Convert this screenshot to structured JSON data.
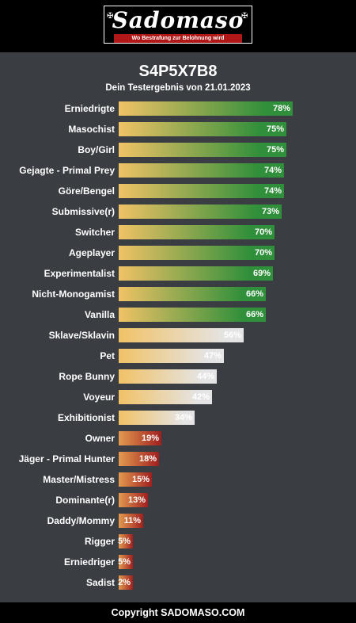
{
  "brand": {
    "name": "Sadomaso",
    "tagline": "Wo Bestrafung zur Belohnung wird"
  },
  "result": {
    "title": "S4P5X7B8",
    "subtitle": "Dein Testergebnis von 21.01.2023"
  },
  "colors": {
    "high_start": "#f1c266",
    "high_end": "#2f8f3a",
    "mid_start": "#f1c266",
    "mid_end": "#e4e4e4",
    "low_start": "#e39a4f",
    "low_end": "#a01f1f"
  },
  "results": [
    {
      "label": "Erniedrigte",
      "value": 78,
      "value_text": "78%",
      "tier": "high"
    },
    {
      "label": "Masochist",
      "value": 75,
      "value_text": "75%",
      "tier": "high"
    },
    {
      "label": "Boy/Girl",
      "value": 75,
      "value_text": "75%",
      "tier": "high"
    },
    {
      "label": "Gejagte - Primal Prey",
      "value": 74,
      "value_text": "74%",
      "tier": "high"
    },
    {
      "label": "Göre/Bengel",
      "value": 74,
      "value_text": "74%",
      "tier": "high"
    },
    {
      "label": "Submissive(r)",
      "value": 73,
      "value_text": "73%",
      "tier": "high"
    },
    {
      "label": "Switcher",
      "value": 70,
      "value_text": "70%",
      "tier": "high"
    },
    {
      "label": "Ageplayer",
      "value": 70,
      "value_text": "70%",
      "tier": "high"
    },
    {
      "label": "Experimentalist",
      "value": 69,
      "value_text": "69%",
      "tier": "high"
    },
    {
      "label": "Nicht-Monogamist",
      "value": 66,
      "value_text": "66%",
      "tier": "high"
    },
    {
      "label": "Vanilla",
      "value": 66,
      "value_text": "66%",
      "tier": "high"
    },
    {
      "label": "Sklave/Sklavin",
      "value": 56,
      "value_text": "56%",
      "tier": "mid"
    },
    {
      "label": "Pet",
      "value": 47,
      "value_text": "47%",
      "tier": "mid"
    },
    {
      "label": "Rope Bunny",
      "value": 44,
      "value_text": "44%",
      "tier": "mid"
    },
    {
      "label": "Voyeur",
      "value": 42,
      "value_text": "42%",
      "tier": "mid"
    },
    {
      "label": "Exhibitionist",
      "value": 34,
      "value_text": "34%",
      "tier": "mid"
    },
    {
      "label": "Owner",
      "value": 19,
      "value_text": "19%",
      "tier": "low"
    },
    {
      "label": "Jäger - Primal Hunter",
      "value": 18,
      "value_text": "18%",
      "tier": "low"
    },
    {
      "label": "Master/Mistress",
      "value": 15,
      "value_text": "15%",
      "tier": "low"
    },
    {
      "label": "Dominante(r)",
      "value": 13,
      "value_text": "13%",
      "tier": "low"
    },
    {
      "label": "Daddy/Mommy",
      "value": 11,
      "value_text": "11%",
      "tier": "low"
    },
    {
      "label": "Rigger",
      "value": 5,
      "value_text": "5%",
      "tier": "low"
    },
    {
      "label": "Erniedriger",
      "value": 5,
      "value_text": "5%",
      "tier": "low"
    },
    {
      "label": "Sadist",
      "value": 2,
      "value_text": "2%",
      "tier": "low"
    }
  ],
  "footer": {
    "copyright": "Copyright SADOMASO.COM"
  }
}
